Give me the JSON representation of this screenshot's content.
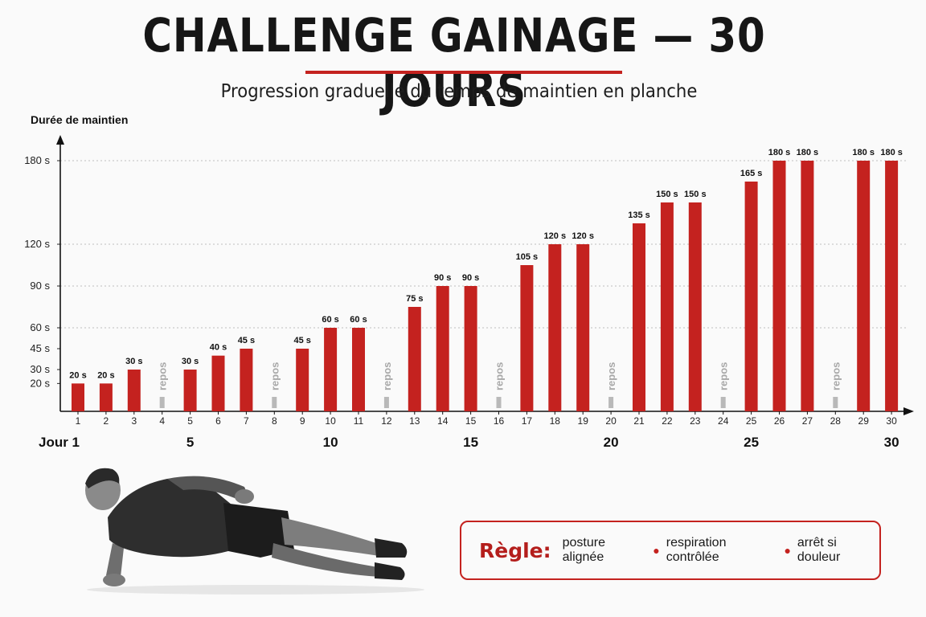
{
  "header": {
    "title": "CHALLENGE GAINAGE — 30 JOURS",
    "subtitle": "Progression graduelle du temps de maintien en planche"
  },
  "rule": {
    "label": "Règle:",
    "items": [
      "posture alignée",
      "respiration contrôlée",
      "arrêt si douleur"
    ]
  },
  "colors": {
    "bar": "#c4221f",
    "rest": "#b9b9b9",
    "accent": "#c4221f"
  },
  "icons": {
    "athlete": "side-plank-athlete-icon"
  },
  "chart_data": {
    "type": "bar",
    "ylabel": "Durée de maintien",
    "yticks": [
      20,
      30,
      45,
      60,
      90,
      120,
      180
    ],
    "ytick_labels": [
      "20 s",
      "30 s",
      "45 s",
      "60 s",
      "90 s",
      "120 s",
      "180 s"
    ],
    "gridlines_at": [
      60,
      90,
      120,
      180
    ],
    "x": [
      1,
      2,
      3,
      4,
      5,
      6,
      7,
      8,
      9,
      10,
      11,
      12,
      13,
      14,
      15,
      16,
      17,
      18,
      19,
      20,
      21,
      22,
      23,
      24,
      25,
      26,
      27,
      28,
      29,
      30
    ],
    "values": [
      20,
      20,
      30,
      null,
      30,
      40,
      45,
      null,
      45,
      60,
      60,
      null,
      75,
      90,
      90,
      null,
      105,
      120,
      120,
      null,
      135,
      150,
      150,
      null,
      165,
      180,
      180,
      null,
      180,
      180
    ],
    "data_labels": [
      "20 s",
      "20 s",
      "30 s",
      "repos",
      "30 s",
      "40 s",
      "45 s",
      "repos",
      "45 s",
      "60 s",
      "60 s",
      "repos",
      "75 s",
      "90 s",
      "90 s",
      "repos",
      "105 s",
      "120 s",
      "120 s",
      "repos",
      "135 s",
      "150 s",
      "150 s",
      "repos",
      "165 s",
      "180 s",
      "180 s",
      "repos",
      "180 s",
      "180 s"
    ],
    "rest_days": [
      4,
      8,
      12,
      16,
      20,
      24,
      28
    ],
    "rest_label": "repos",
    "day_markers": [
      {
        "day": 1,
        "label": "Jour 1"
      },
      {
        "day": 5,
        "label": "5"
      },
      {
        "day": 10,
        "label": "10"
      },
      {
        "day": 15,
        "label": "15"
      },
      {
        "day": 20,
        "label": "20"
      },
      {
        "day": 25,
        "label": "25"
      },
      {
        "day": 30,
        "label": "30"
      }
    ],
    "grid": true,
    "legend": "none"
  }
}
